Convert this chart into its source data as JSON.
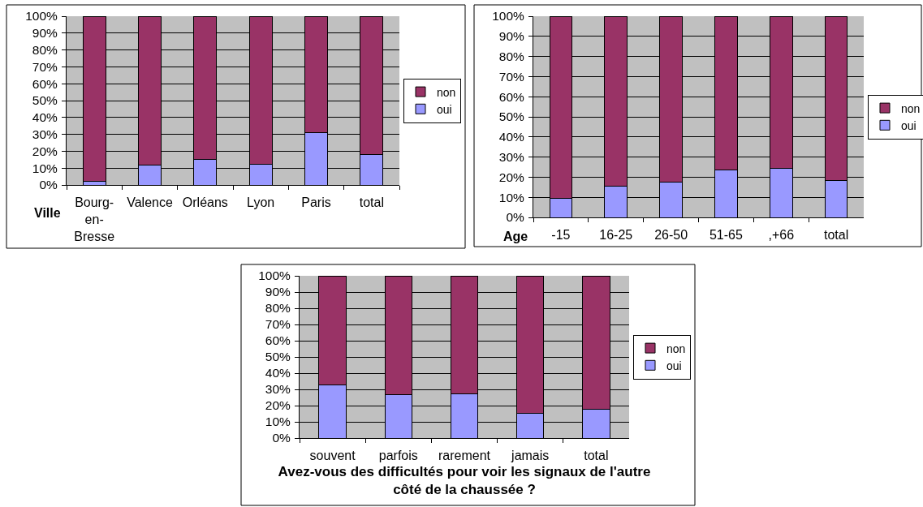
{
  "chart_data": [
    {
      "type": "bar",
      "stacked": true,
      "xlabel": "Ville",
      "categories": [
        "Bourg-en-Bresse",
        "Valence",
        "Orléans",
        "Lyon",
        "Paris",
        "total"
      ],
      "series": [
        {
          "name": "oui",
          "color": "#9999ff",
          "values": [
            2,
            12,
            15,
            12.5,
            31,
            18
          ]
        },
        {
          "name": "non",
          "color": "#993366",
          "values": [
            98,
            88,
            85,
            87.5,
            69,
            82
          ]
        }
      ],
      "ylim": [
        0,
        100
      ],
      "yticks": [
        {
          "value": 0,
          "label": "0%"
        },
        {
          "value": 10,
          "label": "10%"
        },
        {
          "value": 20,
          "label": "20%"
        },
        {
          "value": 30,
          "label": "30%"
        },
        {
          "value": 40,
          "label": "40%"
        },
        {
          "value": 50,
          "label": "50%"
        },
        {
          "value": 60,
          "label": "60%"
        },
        {
          "value": 70,
          "label": "70%"
        },
        {
          "value": 80,
          "label": "80%"
        },
        {
          "value": 90,
          "label": "90%"
        },
        {
          "value": 100,
          "label": "100%"
        }
      ],
      "grid": "y",
      "legend": "right"
    },
    {
      "type": "bar",
      "stacked": true,
      "xlabel": "Age",
      "categories": [
        "-15",
        "16-25",
        "26-50",
        "51-65",
        ",+66",
        "total"
      ],
      "series": [
        {
          "name": "oui",
          "color": "#9999ff",
          "values": [
            9.5,
            15.5,
            17.5,
            23.5,
            24.5,
            18.5
          ]
        },
        {
          "name": "non",
          "color": "#993366",
          "values": [
            90.5,
            84.5,
            82.5,
            76.5,
            75.5,
            81.5
          ]
        }
      ],
      "ylim": [
        0,
        100
      ],
      "yticks": [
        {
          "value": 0,
          "label": "0%"
        },
        {
          "value": 10,
          "label": "10%"
        },
        {
          "value": 20,
          "label": "20%"
        },
        {
          "value": 30,
          "label": "30%"
        },
        {
          "value": 40,
          "label": "40%"
        },
        {
          "value": 50,
          "label": "50%"
        },
        {
          "value": 60,
          "label": "60%"
        },
        {
          "value": 70,
          "label": "70%"
        },
        {
          "value": 80,
          "label": "80%"
        },
        {
          "value": 90,
          "label": "90%"
        },
        {
          "value": 100,
          "label": "100%"
        }
      ],
      "grid": "y",
      "legend": "right"
    },
    {
      "type": "bar",
      "stacked": true,
      "xlabel": "Avez-vous des difficultés pour voir les signaux de l'autre côté de la chaussée ?",
      "categories": [
        "souvent",
        "parfois",
        "rarement",
        "jamais",
        "total"
      ],
      "series": [
        {
          "name": "oui",
          "color": "#9999ff",
          "values": [
            33,
            27,
            27.5,
            15.5,
            18
          ]
        },
        {
          "name": "non",
          "color": "#993366",
          "values": [
            67,
            73,
            72.5,
            84.5,
            82
          ]
        }
      ],
      "ylim": [
        0,
        100
      ],
      "yticks": [
        {
          "value": 0,
          "label": "0%"
        },
        {
          "value": 10,
          "label": "10%"
        },
        {
          "value": 20,
          "label": "20%"
        },
        {
          "value": 30,
          "label": "30%"
        },
        {
          "value": 40,
          "label": "40%"
        },
        {
          "value": 50,
          "label": "50%"
        },
        {
          "value": 60,
          "label": "60%"
        },
        {
          "value": 70,
          "label": "70%"
        },
        {
          "value": 80,
          "label": "80%"
        },
        {
          "value": 90,
          "label": "90%"
        },
        {
          "value": 100,
          "label": "100%"
        }
      ],
      "grid": "y",
      "legend": "right"
    }
  ]
}
